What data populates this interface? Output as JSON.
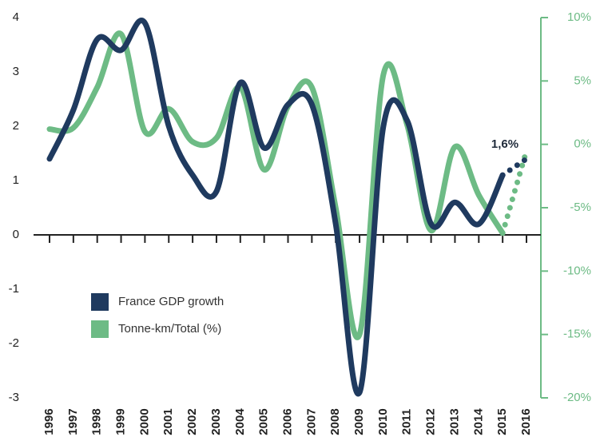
{
  "chart_data": {
    "type": "line",
    "categories": [
      "1996",
      "1997",
      "1998",
      "1999",
      "2000",
      "2001",
      "2002",
      "2003",
      "2004",
      "2005",
      "2006",
      "2007",
      "2008",
      "2009",
      "2010",
      "2011",
      "2012",
      "2013",
      "2014",
      "2015",
      "2016"
    ],
    "dotted_from": "2015",
    "series": [
      {
        "name": "France GDP growth",
        "color": "#1f3a5f",
        "values": [
          1.4,
          2.3,
          3.6,
          3.4,
          3.9,
          2.0,
          1.1,
          0.8,
          2.8,
          1.6,
          2.4,
          2.4,
          0.2,
          -2.9,
          2.0,
          2.1,
          0.2,
          0.6,
          0.2,
          1.1,
          1.4
        ]
      },
      {
        "name": "Tonne-km/Total (%)",
        "color": "#6dbb85",
        "axis": "y2",
        "values": [
          1.2,
          1.3,
          4.5,
          8.7,
          1.0,
          2.8,
          0.2,
          0.5,
          4.5,
          -2.0,
          3.0,
          4.5,
          -5.0,
          -15.0,
          5.5,
          1.5,
          -6.8,
          -0.2,
          -4.0,
          -7.0,
          -0.5
        ]
      }
    ],
    "annotation": "1,6%",
    "ylim": [
      -3,
      4
    ],
    "yticks": [
      4,
      3,
      2,
      1,
      0,
      -1,
      -2,
      -3
    ],
    "y2lim": [
      -20,
      10
    ],
    "y2ticks": [
      {
        "value": 10,
        "label": "10%"
      },
      {
        "value": 5,
        "label": "5%"
      },
      {
        "value": 0,
        "label": "0%"
      },
      {
        "value": -5,
        "label": "-5%"
      },
      {
        "value": -10,
        "label": "-10%"
      },
      {
        "value": -15,
        "label": "-15%"
      },
      {
        "value": -20,
        "label": "-20%"
      }
    ],
    "legend": "lower-left"
  }
}
